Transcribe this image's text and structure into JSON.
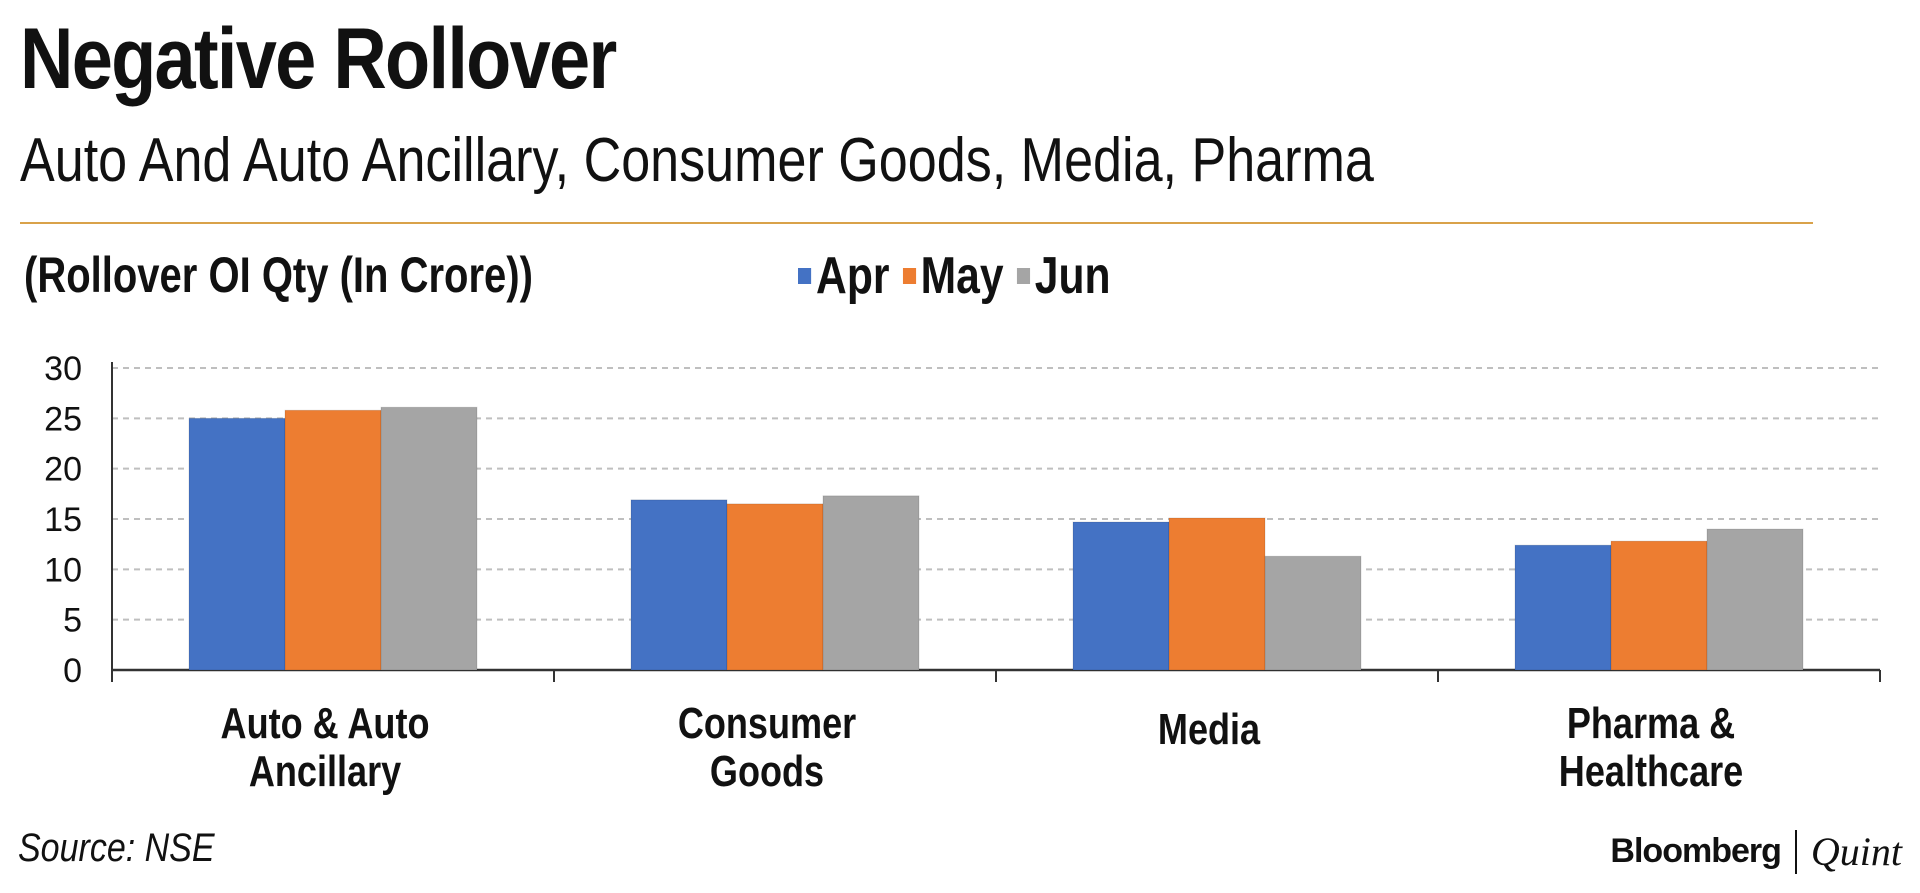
{
  "header": {
    "title": "Negative Rollover",
    "subtitle": "Auto And Auto Ancillary, Consumer Goods, Media, Pharma",
    "units": "(Rollover OI Qty (In Crore))"
  },
  "footer": {
    "source": "Source: NSE",
    "brand_primary": "Bloomberg",
    "brand_secondary": "Quint"
  },
  "colors": {
    "accent_rule": "#d9a24a",
    "gridline": "#bfbfbf",
    "axis": "#333333"
  },
  "chart_data": {
    "type": "bar",
    "title": "Negative Rollover",
    "subtitle": "Auto And Auto Ancillary, Consumer Goods, Media, Pharma",
    "ylabel": "(Rollover OI Qty (In Crore))",
    "xlabel": "",
    "ylim": [
      0,
      30
    ],
    "yticks": [
      0,
      5,
      10,
      15,
      20,
      25,
      30
    ],
    "grid": true,
    "legend_position": "top",
    "categories": [
      [
        "Auto & Auto",
        "Ancillary"
      ],
      [
        "Consumer",
        "Goods"
      ],
      [
        "Media"
      ],
      [
        "Pharma &",
        "Healthcare"
      ]
    ],
    "series": [
      {
        "name": "Apr",
        "color": "#4472c4",
        "values": [
          25,
          16.9,
          14.7,
          12.4
        ]
      },
      {
        "name": "May",
        "color": "#ed7d31",
        "values": [
          25.8,
          16.5,
          15.1,
          12.8
        ]
      },
      {
        "name": "Jun",
        "color": "#a5a5a5",
        "values": [
          26.1,
          17.3,
          11.3,
          14.0
        ]
      }
    ]
  }
}
